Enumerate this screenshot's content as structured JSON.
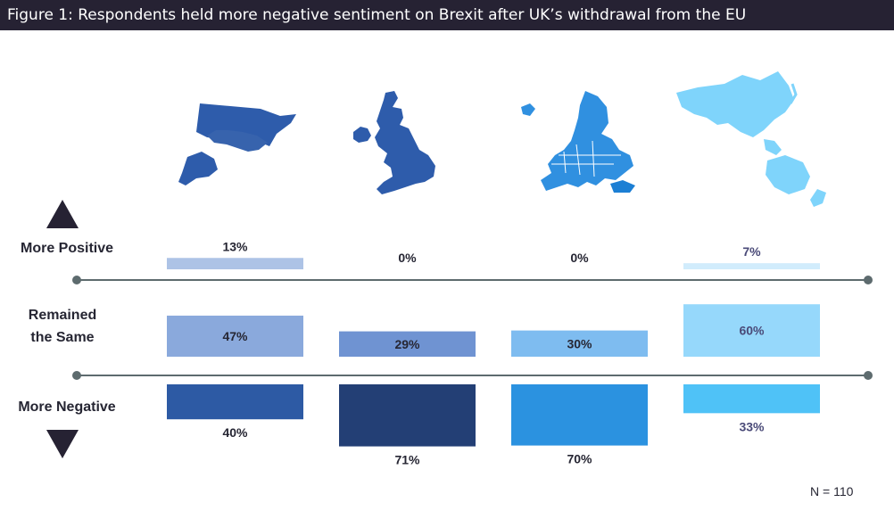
{
  "title": "Figure 1: Respondents held more negative sentiment on Brexit after UK’s withdrawal from the EU",
  "note": "N = 110",
  "icons": {
    "usa": "usa-map-icon",
    "uk": "uk-map-icon",
    "europe": "europe-map-icon",
    "asia_pacific": "asia-pacific-map-icon"
  },
  "row_labels": {
    "positive": "More Positive",
    "same_line1": "Remained",
    "same_line2": "the Same",
    "negative": "More Negative"
  },
  "chart_data": {
    "type": "bar",
    "categories": [
      "",
      "",
      "",
      ""
    ],
    "series": [
      {
        "values": [
          13,
          0,
          0,
          7
        ]
      },
      {
        "values": [
          47,
          29,
          30,
          60
        ]
      },
      {
        "values": [
          40,
          71,
          70,
          33
        ]
      }
    ],
    "value_labels": [
      [
        "13%",
        "0%",
        "0%",
        "7%"
      ],
      [
        "47%",
        "29%",
        "30%",
        "60%"
      ],
      [
        "40%",
        "71%",
        "70%",
        "33%"
      ]
    ],
    "colors": [
      [
        "#adc3e6",
        "#9cb4e0",
        "#a7cdf5",
        "#d1ecfc"
      ],
      [
        "#8aa9dc",
        "#6f93d2",
        "#7ebcf0",
        "#96d8fb"
      ],
      [
        "#2d5aa4",
        "#233f75",
        "#2b92e0",
        "#4fc2f7"
      ]
    ],
    "label_colors": [
      "#262633",
      "#262633",
      "#262633",
      "#4a4a78"
    ],
    "grid": false
  }
}
